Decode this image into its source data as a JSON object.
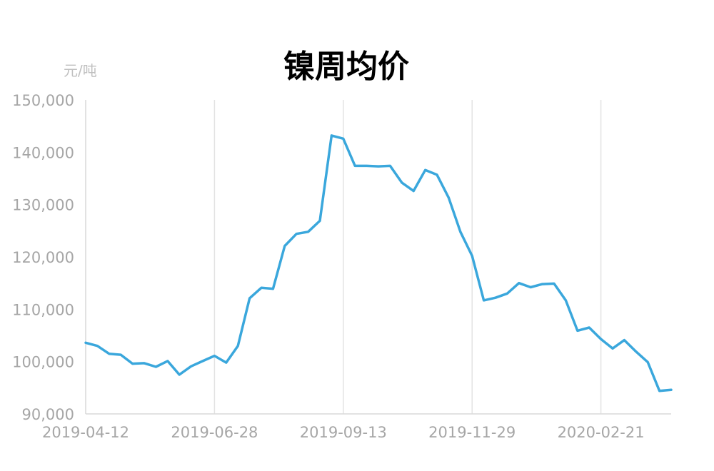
{
  "chart_data": {
    "type": "line",
    "title": "镍周均价",
    "unit_label": "元/吨",
    "ylim": [
      90000,
      150000
    ],
    "yticks": [
      90000,
      100000,
      110000,
      120000,
      130000,
      140000,
      150000
    ],
    "ytick_labels": [
      "90,000",
      "100,000",
      "110,000",
      "120,000",
      "130,000",
      "140,000",
      "150,000"
    ],
    "xticks": [
      "2019-04-12",
      "2019-06-28",
      "2019-09-13",
      "2019-11-29",
      "2020-02-21"
    ],
    "xtick_indices": [
      0,
      11,
      22,
      33,
      44
    ],
    "grid": "vertical",
    "series": [
      {
        "color": "#3aa7dc",
        "x": [
          "2019-04-12",
          "2019-04-19",
          "2019-04-26",
          "2019-05-03",
          "2019-05-10",
          "2019-05-17",
          "2019-05-24",
          "2019-05-31",
          "2019-06-07",
          "2019-06-14",
          "2019-06-21",
          "2019-06-28",
          "2019-07-05",
          "2019-07-12",
          "2019-07-19",
          "2019-07-26",
          "2019-08-02",
          "2019-08-09",
          "2019-08-16",
          "2019-08-23",
          "2019-08-30",
          "2019-09-06",
          "2019-09-13",
          "2019-09-20",
          "2019-09-27",
          "2019-10-04",
          "2019-10-11",
          "2019-10-18",
          "2019-10-25",
          "2019-11-01",
          "2019-11-08",
          "2019-11-15",
          "2019-11-22",
          "2019-11-29",
          "2019-12-06",
          "2019-12-13",
          "2019-12-20",
          "2019-12-27",
          "2020-01-03",
          "2020-01-10",
          "2020-01-17",
          "2020-01-24",
          "2020-01-31",
          "2020-02-07",
          "2020-02-14",
          "2020-02-21",
          "2020-02-28",
          "2020-03-06",
          "2020-03-13",
          "2020-03-20",
          "2020-03-27"
        ],
        "values": [
          103600,
          103000,
          101500,
          101300,
          99600,
          99700,
          99000,
          100100,
          97500,
          99100,
          100100,
          101100,
          99800,
          103000,
          112100,
          114100,
          113900,
          122100,
          124400,
          124800,
          126900,
          143200,
          142600,
          137400,
          137400,
          137300,
          137400,
          134200,
          132600,
          136600,
          135700,
          131300,
          124800,
          120200,
          111700,
          112200,
          113000,
          115000,
          114200,
          114800,
          114900,
          111700,
          105900,
          106500,
          104300,
          102500,
          104100,
          101900,
          99900,
          94400,
          94600
        ]
      }
    ]
  }
}
